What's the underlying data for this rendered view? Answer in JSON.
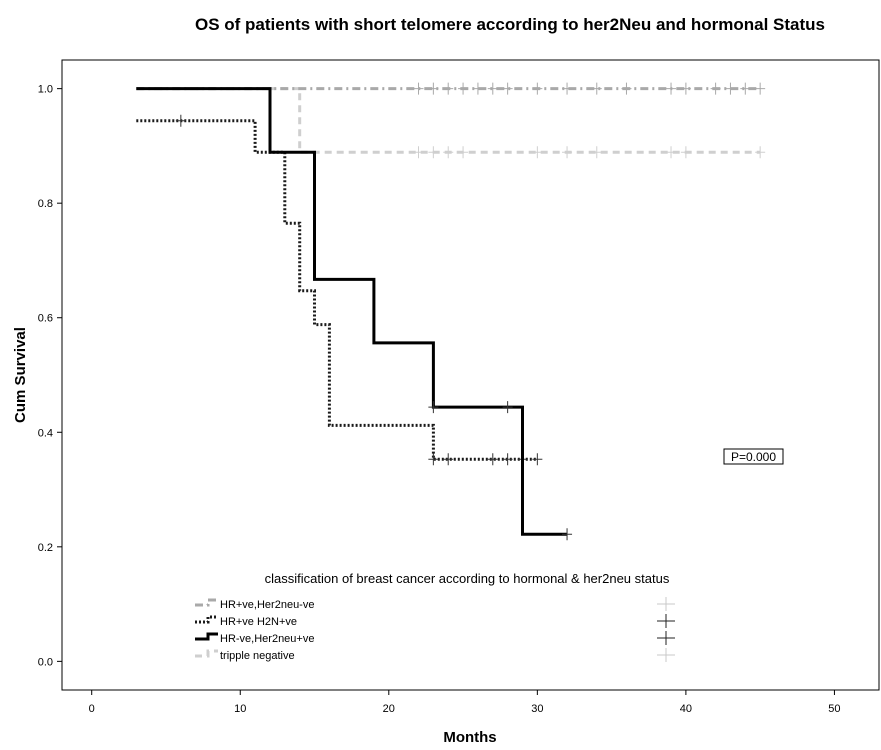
{
  "chart_data": {
    "type": "line",
    "title": "OS  of patients with short telomere according to her2Neu  and hormonal Status",
    "xlabel": "Months",
    "ylabel": "Cum Survival",
    "xlim": [
      -2,
      53
    ],
    "ylim": [
      -0.05,
      1.05
    ],
    "xticks": [
      0,
      10,
      20,
      30,
      40,
      50
    ],
    "yticks": [
      0.0,
      0.2,
      0.4,
      0.6,
      0.8,
      1.0
    ],
    "ytick_labels": [
      "0.0",
      "0.2",
      "0.4",
      "0.6",
      "0.8",
      "1.0"
    ],
    "grid": false,
    "legend_title": "classification of  breast cancer according to hormonal & her2neu status",
    "legend_position": "bottom-center",
    "annotation": "P=0.000",
    "series": [
      {
        "name": "HR+ve,Her2neu-ve",
        "color": "#a9a9a9",
        "style": "dashdot",
        "steps": [
          [
            3,
            1.0
          ],
          [
            45,
            1.0
          ]
        ],
        "censored": [
          [
            22,
            1.0
          ],
          [
            23,
            1.0
          ],
          [
            24,
            1.0
          ],
          [
            25,
            1.0
          ],
          [
            26,
            1.0
          ],
          [
            27,
            1.0
          ],
          [
            28,
            1.0
          ],
          [
            30,
            1.0
          ],
          [
            32,
            1.0
          ],
          [
            34,
            1.0
          ],
          [
            36,
            1.0
          ],
          [
            39,
            1.0
          ],
          [
            40,
            1.0
          ],
          [
            42,
            1.0
          ],
          [
            43,
            1.0
          ],
          [
            44,
            1.0
          ],
          [
            45,
            1.0
          ]
        ]
      },
      {
        "name": "HR+ve H2N+ve",
        "color": "#1a1a1a",
        "style": "dotted",
        "steps": [
          [
            3,
            0.944
          ],
          [
            11,
            0.944
          ],
          [
            11,
            0.889
          ],
          [
            13,
            0.889
          ],
          [
            13,
            0.765
          ],
          [
            14,
            0.765
          ],
          [
            14,
            0.647
          ],
          [
            15,
            0.647
          ],
          [
            15,
            0.588
          ],
          [
            16,
            0.588
          ],
          [
            16,
            0.412
          ],
          [
            23,
            0.412
          ],
          [
            23,
            0.353
          ],
          [
            30,
            0.353
          ]
        ],
        "censored": [
          [
            6,
            0.944
          ],
          [
            23,
            0.353
          ],
          [
            24,
            0.353
          ],
          [
            27,
            0.353
          ],
          [
            28,
            0.353
          ],
          [
            29,
            0.353
          ],
          [
            30,
            0.353
          ]
        ]
      },
      {
        "name": "HR-ve,Her2neu+ve",
        "color": "#000000",
        "style": "solid",
        "steps": [
          [
            3,
            1.0
          ],
          [
            12,
            1.0
          ],
          [
            12,
            0.889
          ],
          [
            15,
            0.889
          ],
          [
            15,
            0.667
          ],
          [
            19,
            0.667
          ],
          [
            19,
            0.556
          ],
          [
            23,
            0.556
          ],
          [
            23,
            0.444
          ],
          [
            29,
            0.444
          ],
          [
            29,
            0.222
          ],
          [
            32,
            0.222
          ]
        ],
        "censored": [
          [
            23,
            0.444
          ],
          [
            28,
            0.444
          ],
          [
            32,
            0.222
          ]
        ]
      },
      {
        "name": "tripple negative",
        "color": "#cfcfcf",
        "style": "dashed",
        "steps": [
          [
            3,
            1.0
          ],
          [
            14,
            1.0
          ],
          [
            14,
            0.889
          ],
          [
            45,
            0.889
          ]
        ],
        "censored": [
          [
            22,
            0.889
          ],
          [
            23,
            0.889
          ],
          [
            24,
            0.889
          ],
          [
            25,
            0.889
          ],
          [
            30,
            0.889
          ],
          [
            32,
            0.889
          ],
          [
            34,
            0.889
          ],
          [
            39,
            0.889
          ],
          [
            40,
            0.889
          ],
          [
            45,
            0.889
          ]
        ]
      }
    ]
  }
}
